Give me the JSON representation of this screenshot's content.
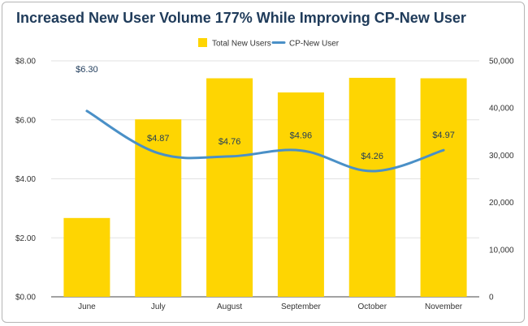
{
  "chart_data": {
    "type": "bar",
    "title": "Increased New User Volume 177% While Improving CP-New User",
    "categories": [
      "June",
      "July",
      "August",
      "September",
      "October",
      "November"
    ],
    "series": [
      {
        "name": "Total New Users",
        "kind": "bar",
        "axis": "right",
        "color": "#fed502",
        "values": [
          16700,
          37600,
          46300,
          43300,
          46400,
          46300
        ]
      },
      {
        "name": "CP-New User",
        "kind": "line",
        "axis": "left",
        "color": "#4a90c7",
        "values": [
          6.3,
          4.87,
          4.76,
          4.96,
          4.26,
          4.97
        ],
        "labels": [
          "$6.30",
          "$4.87",
          "$4.76",
          "$4.96",
          "$4.26",
          "$4.97"
        ]
      }
    ],
    "y_left": {
      "min": 0,
      "max": 8,
      "ticks": [
        "$0.00",
        "$2.00",
        "$4.00",
        "$6.00",
        "$8.00"
      ]
    },
    "y_right": {
      "min": 0,
      "max": 50000,
      "ticks": [
        "0",
        "10,000",
        "20,000",
        "30,000",
        "40,000",
        "50,000"
      ]
    },
    "legend_position": "top-center",
    "grid": true
  }
}
